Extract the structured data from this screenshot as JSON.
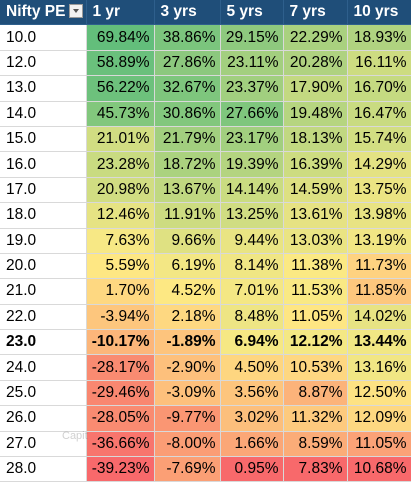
{
  "table": {
    "header": {
      "pe": "Nifty PE",
      "filter_icon": "dropdown-filter-icon",
      "cols": [
        "1 yr",
        "3 yrs",
        "5 yrs",
        "7 yrs",
        "10 yrs"
      ]
    },
    "rows": [
      {
        "pe": "10.0",
        "v": [
          "69.84%",
          "38.86%",
          "29.15%",
          "22.29%",
          "18.93%"
        ],
        "c": [
          "#63be7b",
          "#7bc57d",
          "#8ec97e",
          "#a9d17f",
          "#b0d380"
        ]
      },
      {
        "pe": "12.0",
        "v": [
          "58.89%",
          "27.86%",
          "23.11%",
          "20.28%",
          "16.11%"
        ],
        "c": [
          "#6ac07c",
          "#8cc87e",
          "#a3cf7f",
          "#afd280",
          "#cddc81"
        ]
      },
      {
        "pe": "13.0",
        "v": [
          "56.22%",
          "32.67%",
          "23.37%",
          "17.90%",
          "16.70%"
        ],
        "c": [
          "#6dc17c",
          "#7ec67d",
          "#a1cf7f",
          "#c3d981",
          "#c5da81"
        ]
      },
      {
        "pe": "14.0",
        "v": [
          "45.73%",
          "30.86%",
          "27.66%",
          "19.48%",
          "16.47%"
        ],
        "c": [
          "#82c77d",
          "#82c77d",
          "#7fc67d",
          "#b6d580",
          "#c9db81"
        ]
      },
      {
        "pe": "15.0",
        "v": [
          "21.01%",
          "21.79%",
          "23.17%",
          "18.13%",
          "15.74%"
        ],
        "c": [
          "#d1dd82",
          "#a2cf7f",
          "#a2cf7f",
          "#c1d881",
          "#d2de82"
        ]
      },
      {
        "pe": "16.0",
        "v": [
          "23.28%",
          "18.72%",
          "19.39%",
          "16.39%",
          "14.29%"
        ],
        "c": [
          "#c9db81",
          "#abd27f",
          "#b4d480",
          "#cddc81",
          "#e4e283"
        ]
      },
      {
        "pe": "17.0",
        "v": [
          "20.98%",
          "13.67%",
          "14.14%",
          "14.59%",
          "13.75%"
        ],
        "c": [
          "#d1dd82",
          "#c0d881",
          "#cadc81",
          "#dde082",
          "#ebe483"
        ]
      },
      {
        "pe": "18.0",
        "v": [
          "12.46%",
          "11.91%",
          "13.25%",
          "13.61%",
          "13.98%"
        ],
        "c": [
          "#e6e383",
          "#cddc81",
          "#d0dd82",
          "#e6e283",
          "#e8e383"
        ]
      },
      {
        "pe": "19.0",
        "v": [
          "7.63%",
          "9.66%",
          "9.44%",
          "13.03%",
          "13.19%"
        ],
        "c": [
          "#f7e885",
          "#dfe182",
          "#e9e483",
          "#eae483",
          "#f1e684"
        ]
      },
      {
        "pe": "20.0",
        "v": [
          "5.59%",
          "6.19%",
          "8.14%",
          "11.38%",
          "11.73%"
        ],
        "c": [
          "#fee783",
          "#f3e784",
          "#f0e684",
          "#fbe983",
          "#fed280"
        ]
      },
      {
        "pe": "21.0",
        "v": [
          "1.70%",
          "4.52%",
          "7.01%",
          "11.53%",
          "11.85%"
        ],
        "c": [
          "#fed881",
          "#fde883",
          "#f4e784",
          "#f9e984",
          "#fdc77d"
        ]
      },
      {
        "pe": "22.0",
        "v": [
          "-3.94%",
          "2.18%",
          "8.48%",
          "11.05%",
          "14.02%"
        ],
        "c": [
          "#fdc67d",
          "#fed881",
          "#eee584",
          "#fee683",
          "#e7e383"
        ]
      },
      {
        "pe": "23.0",
        "v": [
          "-10.17%",
          "-1.89%",
          "6.94%",
          "12.12%",
          "13.44%"
        ],
        "c": [
          "#fcb67a",
          "#fdc47d",
          "#f6e884",
          "#f4e884",
          "#f1e784"
        ],
        "bold": true
      },
      {
        "pe": "24.0",
        "v": [
          "-28.17%",
          "-2.90%",
          "4.50%",
          "10.53%",
          "13.16%"
        ],
        "c": [
          "#f98b71",
          "#fdc07c",
          "#fed680",
          "#fed781",
          "#f1e684"
        ]
      },
      {
        "pe": "25.0",
        "v": [
          "-29.46%",
          "-3.09%",
          "3.56%",
          "8.87%",
          "12.50%"
        ],
        "c": [
          "#f98770",
          "#fdc07c",
          "#fdc57d",
          "#fcb37a",
          "#fde283"
        ]
      },
      {
        "pe": "26.0",
        "v": [
          "-28.05%",
          "-9.77%",
          "3.02%",
          "11.32%",
          "12.09%"
        ],
        "c": [
          "#f98b71",
          "#fa9673",
          "#fcbf7c",
          "#fdca7e",
          "#fdd881"
        ]
      },
      {
        "pe": "27.0",
        "v": [
          "-36.66%",
          "-8.00%",
          "1.66%",
          "8.59%",
          "11.05%"
        ],
        "c": [
          "#f8756d",
          "#fb9d75",
          "#fba777",
          "#fbac78",
          "#fba277"
        ]
      },
      {
        "pe": "28.0",
        "v": [
          "-39.23%",
          "-7.69%",
          "0.95%",
          "7.83%",
          "10.68%"
        ],
        "c": [
          "#f8696b",
          "#fb9f75",
          "#f8696b",
          "#f8696b",
          "#f8696b"
        ]
      }
    ]
  },
  "watermark": "Capit"
}
